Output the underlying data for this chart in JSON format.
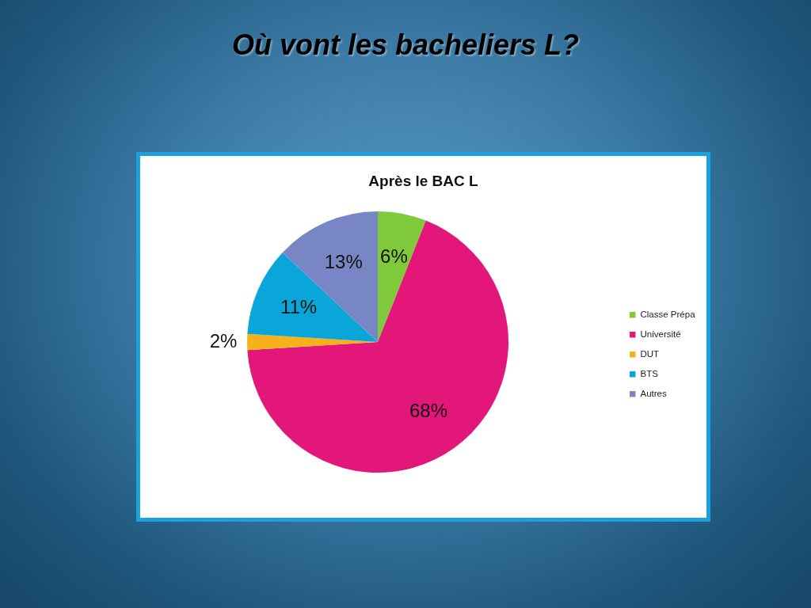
{
  "chart_data": {
    "type": "pie",
    "title": "Où vont les bacheliers L?",
    "subtitle": "Après le BAC L",
    "categories": [
      "Classe Prépa",
      "Université",
      "DUT",
      "BTS",
      "Autres"
    ],
    "values": [
      6,
      68,
      2,
      11,
      13
    ],
    "colors": [
      "#7fc93a",
      "#e3177a",
      "#f7b11a",
      "#0aa6d9",
      "#7986c6"
    ],
    "value_labels": [
      "6%",
      "68%",
      "2%",
      "11%",
      "13%"
    ],
    "legend": "right"
  }
}
